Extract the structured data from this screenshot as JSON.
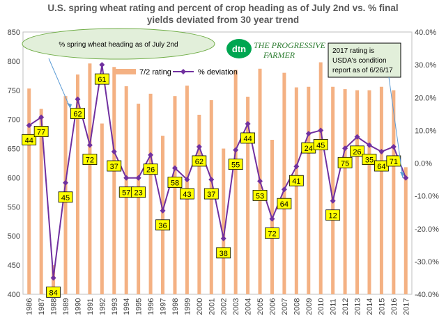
{
  "title_line1": "U.S. spring wheat rating and percent of crop heading as of July 2nd vs. % final",
  "title_line2": "yields deviated from 30 year trend",
  "callout_heading": "% spring wheat heading as of July 2nd",
  "callout_2017": [
    "2017 rating is",
    "USDA's condition",
    "report as of 6/26/17"
  ],
  "logo": {
    "dtn": "dtn",
    "text1": "THE PROGRESSIVE",
    "text2": "FARMER"
  },
  "colors": {
    "bar": "#f4b183",
    "line": "#7030a0",
    "label_fill": "#ffff00",
    "callout_fill": "#e2efda"
  },
  "chart_data": {
    "type": "bar+line",
    "categories": [
      "1986",
      "1987",
      "1988",
      "1989",
      "1990",
      "1991",
      "1992",
      "1993",
      "1994",
      "1995",
      "1996",
      "1997",
      "1998",
      "1999",
      "2000",
      "2001",
      "2002",
      "2003",
      "2004",
      "2005",
      "2006",
      "2007",
      "2008",
      "2009",
      "2010",
      "2011",
      "2012",
      "2013",
      "2014",
      "2015",
      "2016",
      "2017"
    ],
    "series": [
      {
        "name": "7/2 rating",
        "axis": "left",
        "type": "bar",
        "values": [
          753,
          718,
          450,
          740,
          777,
          796,
          693,
          790,
          757,
          727,
          744,
          672,
          740,
          758,
          708,
          733,
          650,
          785,
          739,
          787,
          665,
          780,
          755,
          756,
          798,
          756,
          752,
          750,
          750,
          756,
          750,
          618
        ]
      },
      {
        "name": "% deviation",
        "axis": "right",
        "type": "line",
        "values": [
          11.5,
          14.0,
          -35.0,
          -6.0,
          19.5,
          5.5,
          30.0,
          3.5,
          -4.5,
          -4.5,
          2.5,
          -14.5,
          -1.5,
          -5.0,
          5.0,
          -5.0,
          -23.0,
          4.0,
          12.0,
          -5.5,
          -17.0,
          -8.0,
          -1.0,
          9.0,
          10.0,
          -11.5,
          4.5,
          8.0,
          5.5,
          3.5,
          5.0,
          -4.5
        ]
      },
      {
        "name": "% spring wheat heading as of July 2nd",
        "type": "labels",
        "values": [
          "44",
          "77",
          "84",
          "45",
          "62",
          "72",
          "61",
          "37",
          "57",
          "23",
          "26",
          "36",
          "58",
          "43",
          "62",
          "37",
          "38",
          "55",
          "44",
          "53",
          "72",
          "64",
          "41",
          "24",
          "45",
          "12",
          "75",
          "26",
          "35",
          "64",
          "71",
          ""
        ]
      }
    ],
    "left_axis": {
      "min": 400,
      "max": 850,
      "step": 50,
      "ticks": [
        "400",
        "450",
        "500",
        "550",
        "600",
        "650",
        "700",
        "750",
        "800",
        "850"
      ]
    },
    "right_axis": {
      "min": -40,
      "max": 40,
      "step": 10,
      "ticks": [
        "-40.0%",
        "-30.0%",
        "-20.0%",
        "-10.0%",
        "0.0%",
        "10.0%",
        "20.0%",
        "30.0%",
        "40.0%"
      ]
    },
    "legend_position": "top-center",
    "grid": false
  }
}
